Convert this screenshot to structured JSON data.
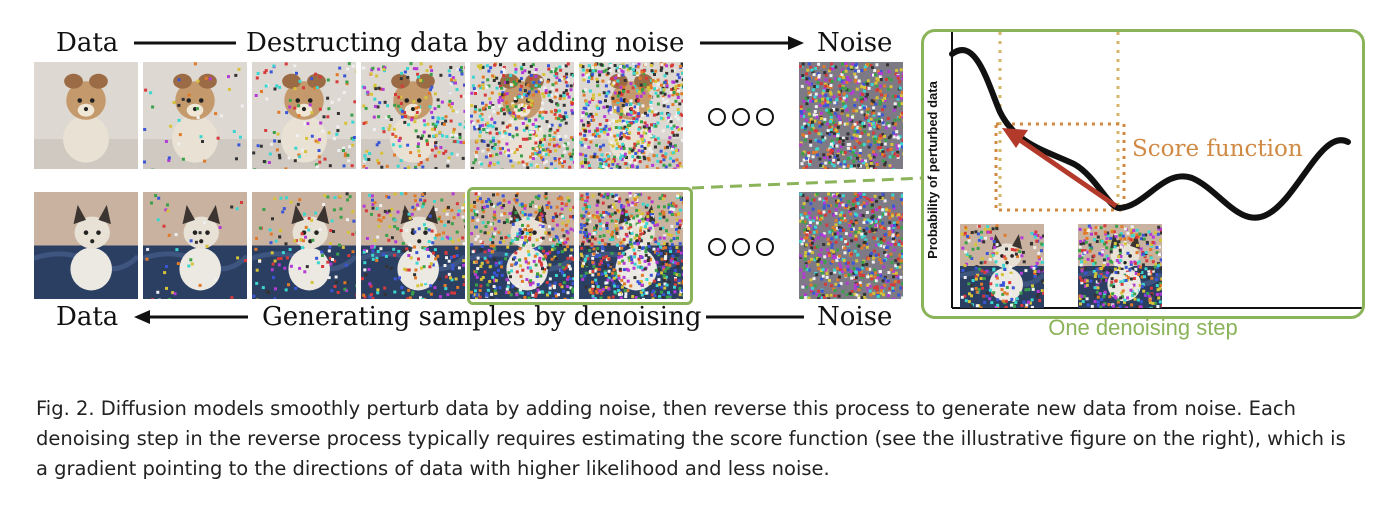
{
  "top_row": {
    "left_label": "Data",
    "middle_label": "Destructing data by adding noise",
    "right_label": "Noise"
  },
  "bottom_row": {
    "left_label": "Data",
    "middle_label": "Generating samples by denoising",
    "right_label": "Noise"
  },
  "panel": {
    "y_axis_label": "Probability of perturbed data",
    "annotation": "Score function",
    "caption": "One denoising step"
  },
  "figure_caption": "Fig. 2.  Diffusion models smoothly perturb data by adding noise, then reverse this process to generate new data from noise. Each denoising step in the reverse process typically requires estimating the score function (see the illustrative figure on the right), which is a gradient pointing to the directions of data with higher likelihood and less noise.",
  "colors": {
    "highlight": "#8bb35a",
    "arrow": "#b33a2b",
    "score_box": "#d08a44",
    "score_text": "#d08a44"
  },
  "noise_levels": {
    "top": [
      0,
      0.06,
      0.18,
      0.35,
      0.7,
      0.95,
      null,
      1.0
    ],
    "bottom": [
      0,
      0.06,
      0.18,
      0.35,
      0.7,
      0.95,
      null,
      1.0
    ]
  }
}
